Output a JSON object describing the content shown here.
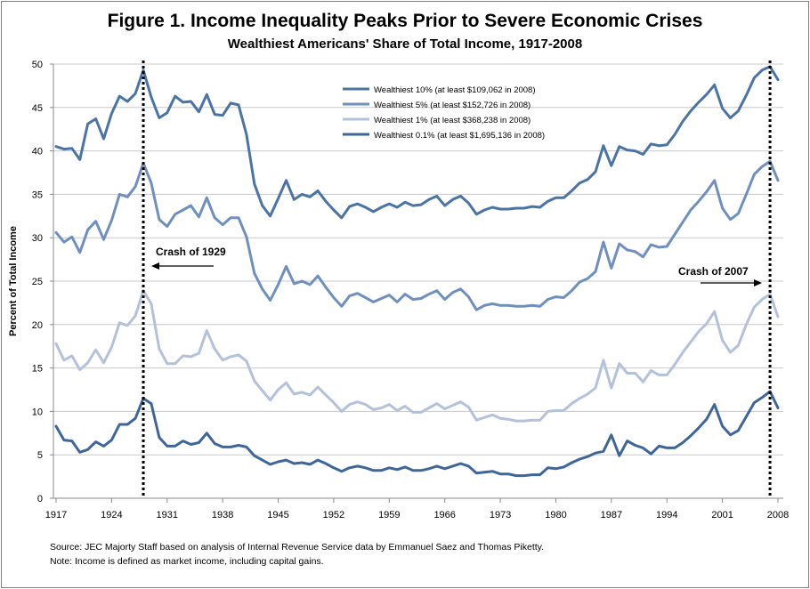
{
  "chart_data": {
    "type": "line",
    "title": "Figure 1. Income Inequality Peaks Prior to Severe Economic Crises",
    "subtitle": "Wealthiest Americans' Share of Total Income, 1917-2008",
    "xlabel": "",
    "ylabel": "Percent of Total Income",
    "xlim": [
      1917,
      2008
    ],
    "ylim": [
      0,
      50
    ],
    "yticks": [
      0,
      5,
      10,
      15,
      20,
      25,
      30,
      35,
      40,
      45,
      50
    ],
    "xticks": [
      1917,
      1924,
      1931,
      1938,
      1945,
      1952,
      1959,
      1966,
      1973,
      1980,
      1987,
      1994,
      2001,
      2008
    ],
    "x_start": 1917,
    "series": [
      {
        "name": "Wealthiest 10% (at least $109,062 in 2008)",
        "color": "#4a73a6",
        "values": [
          40.5,
          40.2,
          40.3,
          39.0,
          43.1,
          43.7,
          41.4,
          44.3,
          46.3,
          45.7,
          46.6,
          49.3,
          46.2,
          43.8,
          44.4,
          46.3,
          45.6,
          45.7,
          44.5,
          46.5,
          44.2,
          44.1,
          45.5,
          45.3,
          41.9,
          36.2,
          33.7,
          32.5,
          34.5,
          36.6,
          34.4,
          35.0,
          34.7,
          35.4,
          34.2,
          33.2,
          32.3,
          33.6,
          33.9,
          33.5,
          33.0,
          33.5,
          33.9,
          33.5,
          34.1,
          33.7,
          33.8,
          34.4,
          34.8,
          33.7,
          34.4,
          34.8,
          34.0,
          32.7,
          33.2,
          33.5,
          33.3,
          33.3,
          33.4,
          33.4,
          33.6,
          33.5,
          34.2,
          34.6,
          34.6,
          35.4,
          36.3,
          36.7,
          37.6,
          40.6,
          38.3,
          40.5,
          40.1,
          40.0,
          39.6,
          40.8,
          40.6,
          40.7,
          41.9,
          43.4,
          44.6,
          45.6,
          46.5,
          47.6,
          44.9,
          43.8,
          44.6,
          46.4,
          48.4,
          49.3,
          49.7,
          48.2
        ]
      },
      {
        "name": "Wealthiest 5% (at least $152,726 in 2008)",
        "color": "#6f8fbe",
        "values": [
          30.6,
          29.5,
          30.1,
          28.3,
          30.9,
          31.9,
          29.8,
          32.0,
          35.0,
          34.7,
          35.9,
          38.6,
          36.3,
          32.1,
          31.3,
          32.7,
          33.2,
          33.7,
          32.4,
          34.6,
          32.3,
          31.5,
          32.3,
          32.3,
          30.1,
          25.9,
          24.1,
          22.8,
          24.6,
          26.7,
          24.7,
          25.0,
          24.6,
          25.6,
          24.3,
          23.1,
          22.1,
          23.3,
          23.6,
          23.1,
          22.6,
          23.0,
          23.4,
          22.6,
          23.5,
          22.9,
          23.0,
          23.5,
          23.9,
          22.9,
          23.7,
          24.1,
          23.2,
          21.7,
          22.2,
          22.4,
          22.2,
          22.2,
          22.1,
          22.1,
          22.2,
          22.1,
          22.9,
          23.2,
          23.1,
          23.9,
          24.9,
          25.3,
          26.1,
          29.5,
          26.5,
          29.3,
          28.6,
          28.4,
          27.8,
          29.2,
          28.9,
          29.0,
          30.4,
          31.8,
          33.2,
          34.2,
          35.3,
          36.6,
          33.4,
          32.1,
          32.8,
          35.0,
          37.3,
          38.2,
          38.8,
          36.6
        ]
      },
      {
        "name": "Wealthiest 1% (at least $368,238 in 2008)",
        "color": "#b4c1da",
        "values": [
          17.8,
          15.9,
          16.4,
          14.8,
          15.6,
          17.1,
          15.6,
          17.4,
          20.2,
          19.9,
          21.0,
          23.9,
          22.4,
          17.2,
          15.5,
          15.5,
          16.4,
          16.3,
          16.7,
          19.3,
          17.2,
          15.9,
          16.3,
          16.5,
          15.8,
          13.5,
          12.4,
          11.3,
          12.5,
          13.3,
          12.0,
          12.2,
          11.9,
          12.8,
          11.9,
          11.0,
          10.0,
          10.8,
          11.1,
          10.8,
          10.2,
          10.4,
          10.8,
          10.1,
          10.6,
          9.9,
          9.9,
          10.4,
          10.9,
          10.3,
          10.7,
          11.1,
          10.5,
          9.0,
          9.3,
          9.6,
          9.2,
          9.1,
          8.9,
          8.9,
          9.0,
          9.0,
          10.0,
          10.1,
          10.1,
          10.9,
          11.5,
          12.0,
          12.7,
          15.9,
          12.7,
          15.5,
          14.4,
          14.4,
          13.4,
          14.7,
          14.2,
          14.2,
          15.4,
          16.8,
          18.0,
          19.2,
          20.1,
          21.5,
          18.2,
          16.8,
          17.6,
          20.0,
          22.0,
          22.9,
          23.5,
          20.9
        ]
      },
      {
        "name": "Wealthiest 0.1% (at least $1,695,136 in 2008)",
        "color": "#3e669b",
        "values": [
          8.3,
          6.7,
          6.6,
          5.3,
          5.6,
          6.5,
          6.0,
          6.7,
          8.5,
          8.5,
          9.2,
          11.5,
          10.9,
          7.0,
          6.0,
          6.0,
          6.6,
          6.2,
          6.4,
          7.5,
          6.3,
          5.9,
          5.9,
          6.1,
          5.9,
          4.9,
          4.4,
          3.9,
          4.2,
          4.4,
          4.0,
          4.1,
          3.9,
          4.4,
          4.0,
          3.5,
          3.1,
          3.5,
          3.7,
          3.5,
          3.2,
          3.2,
          3.5,
          3.3,
          3.6,
          3.2,
          3.2,
          3.4,
          3.7,
          3.4,
          3.7,
          4.0,
          3.7,
          2.9,
          3.0,
          3.1,
          2.8,
          2.8,
          2.6,
          2.6,
          2.7,
          2.7,
          3.5,
          3.4,
          3.6,
          4.1,
          4.5,
          4.8,
          5.2,
          5.4,
          7.3,
          4.9,
          6.6,
          6.1,
          5.8,
          5.1,
          6.0,
          5.8,
          5.8,
          6.4,
          7.2,
          8.1,
          9.1,
          10.8,
          8.3,
          7.3,
          7.8,
          9.4,
          11.0,
          11.6,
          12.3,
          10.4
        ]
      }
    ],
    "annotations": [
      {
        "text": "Crash of 1929",
        "year": 1928,
        "arrow": "left"
      },
      {
        "text": "Crash of 2007",
        "year": 2007,
        "arrow": "right"
      }
    ],
    "legend_position": "top-center"
  },
  "source": "Source: JEC Majorty Staff based on analysis of Internal Revenue Service data by Emmanuel Saez and Thomas Piketty.",
  "note": "Note: Income is defined as market income, including capital gains."
}
